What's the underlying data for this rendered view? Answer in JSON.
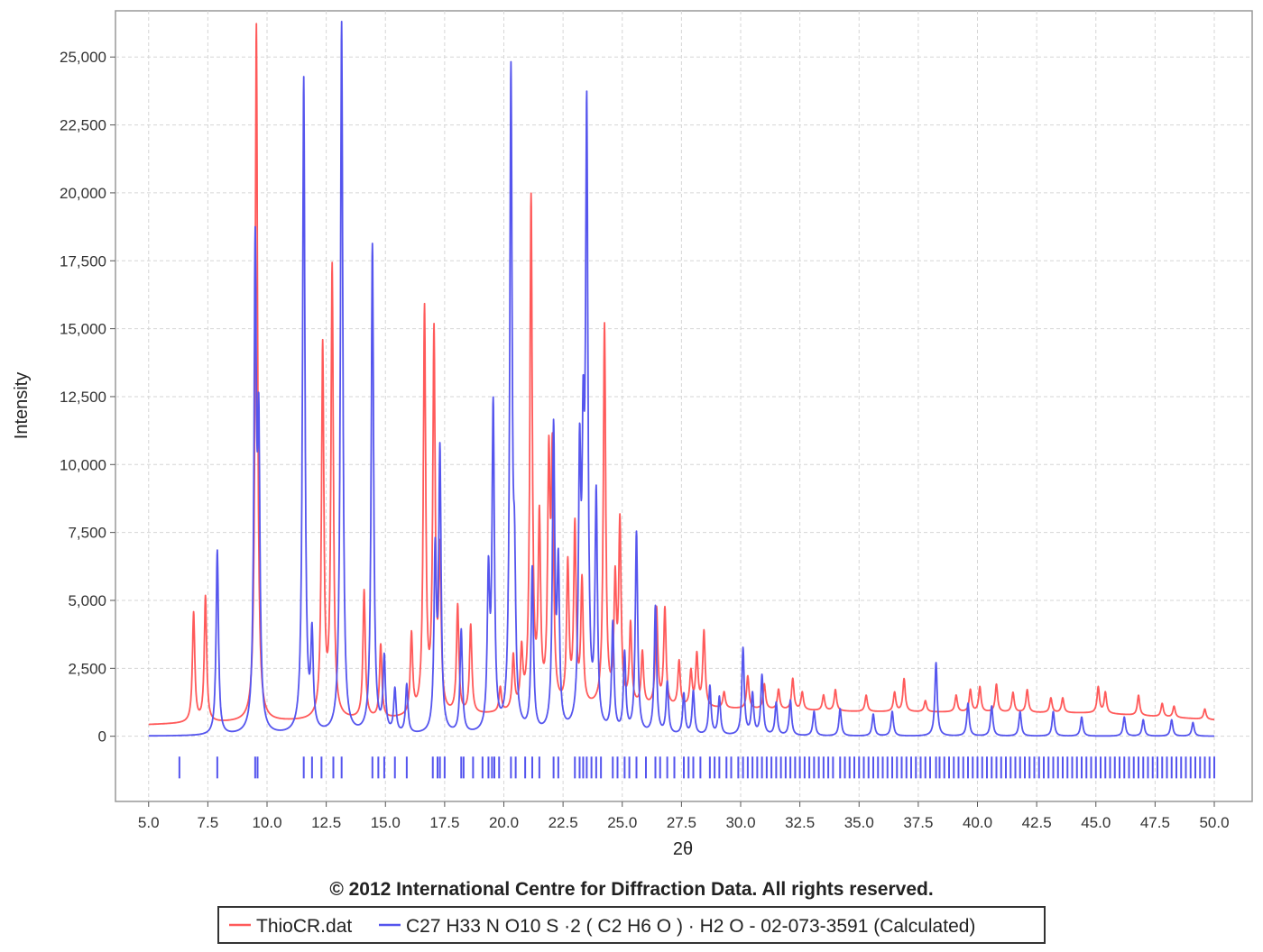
{
  "chart_data": {
    "type": "line",
    "title": "",
    "xlabel": "2θ",
    "ylabel": "Intensity",
    "xlim": [
      3.6,
      51.6
    ],
    "ylim": [
      -2400,
      26700
    ],
    "x_ticks": [
      "5.0",
      "7.5",
      "10.0",
      "12.5",
      "15.0",
      "17.5",
      "20.0",
      "22.5",
      "25.0",
      "27.5",
      "30.0",
      "32.5",
      "35.0",
      "37.5",
      "40.0",
      "42.5",
      "45.0",
      "47.5",
      "50.0"
    ],
    "y_ticks": [
      "0",
      "2,500",
      "5,000",
      "7,500",
      "10,000",
      "12,500",
      "15,000",
      "17,500",
      "20,000",
      "22,500",
      "25,000"
    ],
    "grid": true,
    "legend_position": "bottom",
    "series": [
      {
        "name": "ThioCR.dat",
        "color": "#ff5a5a",
        "baseline": [
          [
            5.0,
            420
          ],
          [
            7.0,
            470
          ],
          [
            10.0,
            520
          ],
          [
            15.0,
            600
          ],
          [
            20.0,
            800
          ],
          [
            25.0,
            1050
          ],
          [
            30.0,
            1000
          ],
          [
            35.0,
            900
          ],
          [
            40.0,
            880
          ],
          [
            45.0,
            850
          ],
          [
            50.0,
            600
          ]
        ],
        "peaks": [
          [
            6.9,
            4500
          ],
          [
            7.4,
            5100
          ],
          [
            9.55,
            26200
          ],
          [
            12.35,
            14200
          ],
          [
            12.75,
            17100
          ],
          [
            14.1,
            5300
          ],
          [
            14.8,
            3300
          ],
          [
            16.1,
            3600
          ],
          [
            16.65,
            15500
          ],
          [
            17.05,
            14500
          ],
          [
            17.3,
            6300
          ],
          [
            18.05,
            4700
          ],
          [
            18.6,
            4000
          ],
          [
            19.85,
            1700
          ],
          [
            20.4,
            2800
          ],
          [
            20.75,
            2900
          ],
          [
            21.15,
            19600
          ],
          [
            21.5,
            7600
          ],
          [
            21.9,
            9500
          ],
          [
            22.05,
            9700
          ],
          [
            22.7,
            6100
          ],
          [
            23.0,
            7500
          ],
          [
            23.3,
            5500
          ],
          [
            24.25,
            15000
          ],
          [
            24.7,
            5400
          ],
          [
            24.9,
            7600
          ],
          [
            25.35,
            4000
          ],
          [
            25.85,
            3000
          ],
          [
            26.45,
            4600
          ],
          [
            26.8,
            4600
          ],
          [
            27.4,
            2700
          ],
          [
            27.9,
            2300
          ],
          [
            28.15,
            2900
          ],
          [
            28.45,
            3800
          ],
          [
            29.3,
            1600
          ],
          [
            30.3,
            2200
          ],
          [
            31.0,
            1900
          ],
          [
            31.6,
            1700
          ],
          [
            32.2,
            2100
          ],
          [
            32.6,
            1600
          ],
          [
            33.5,
            1500
          ],
          [
            34.0,
            1700
          ],
          [
            35.3,
            1500
          ],
          [
            36.5,
            1600
          ],
          [
            36.9,
            2100
          ],
          [
            37.8,
            1300
          ],
          [
            39.1,
            1500
          ],
          [
            39.7,
            1700
          ],
          [
            40.1,
            1800
          ],
          [
            40.8,
            1900
          ],
          [
            41.5,
            1600
          ],
          [
            42.1,
            1700
          ],
          [
            43.1,
            1400
          ],
          [
            43.6,
            1400
          ],
          [
            45.1,
            1800
          ],
          [
            45.4,
            1600
          ],
          [
            46.8,
            1500
          ],
          [
            47.8,
            1200
          ],
          [
            48.3,
            1100
          ],
          [
            49.6,
            1000
          ]
        ]
      },
      {
        "name": "C27 H33 N O10 S ·2 ( C2 H6 O ) · H2 O - 02-073-3591 (Calculated)",
        "color": "#5555ee",
        "baseline": [
          [
            5.0,
            0
          ],
          [
            50.0,
            0
          ]
        ],
        "peaks": [
          [
            7.9,
            6800
          ],
          [
            9.5,
            17300
          ],
          [
            9.65,
            10200
          ],
          [
            11.55,
            24100
          ],
          [
            11.9,
            3400
          ],
          [
            13.15,
            26200
          ],
          [
            14.45,
            18000
          ],
          [
            14.95,
            2700
          ],
          [
            15.4,
            1600
          ],
          [
            15.9,
            1800
          ],
          [
            17.3,
            10200
          ],
          [
            17.1,
            6400
          ],
          [
            18.2,
            3800
          ],
          [
            19.35,
            5500
          ],
          [
            19.55,
            11800
          ],
          [
            20.3,
            24000
          ],
          [
            20.45,
            4700
          ],
          [
            21.2,
            6000
          ],
          [
            22.1,
            11000
          ],
          [
            22.3,
            5800
          ],
          [
            23.2,
            9300
          ],
          [
            23.5,
            21900
          ],
          [
            23.35,
            8800
          ],
          [
            23.9,
            8500
          ],
          [
            24.6,
            4000
          ],
          [
            25.1,
            2900
          ],
          [
            25.6,
            7400
          ],
          [
            26.4,
            4700
          ],
          [
            26.9,
            1900
          ],
          [
            27.6,
            1500
          ],
          [
            28.0,
            1600
          ],
          [
            28.7,
            1800
          ],
          [
            29.1,
            1400
          ],
          [
            30.1,
            3200
          ],
          [
            30.5,
            1500
          ],
          [
            30.9,
            2200
          ],
          [
            31.5,
            1200
          ],
          [
            32.1,
            1300
          ],
          [
            33.1,
            900
          ],
          [
            34.2,
            1000
          ],
          [
            35.6,
            800
          ],
          [
            36.4,
            900
          ],
          [
            38.25,
            2700
          ],
          [
            39.6,
            1200
          ],
          [
            40.6,
            1100
          ],
          [
            41.8,
            900
          ],
          [
            43.2,
            900
          ],
          [
            44.4,
            700
          ],
          [
            46.2,
            700
          ],
          [
            47.0,
            600
          ],
          [
            48.2,
            600
          ],
          [
            49.1,
            500
          ]
        ]
      }
    ],
    "reference_ticks": {
      "color": "#5555ee",
      "x": [
        6.3,
        7.9,
        9.5,
        9.6,
        11.55,
        11.9,
        12.3,
        12.8,
        13.15,
        14.45,
        14.7,
        14.95,
        15.4,
        15.9,
        17.0,
        17.2,
        17.3,
        17.5,
        18.2,
        18.3,
        18.7,
        19.1,
        19.35,
        19.5,
        19.6,
        19.8,
        20.3,
        20.5,
        20.9,
        21.2,
        21.5,
        22.1,
        22.3,
        23.0,
        23.2,
        23.35,
        23.5,
        23.7,
        23.9,
        24.1,
        24.6,
        24.8,
        25.1,
        25.3,
        25.6,
        26.0,
        26.4,
        26.6,
        26.9,
        27.2,
        27.6,
        27.8,
        28.0,
        28.3,
        28.7,
        28.9,
        29.1,
        29.4,
        29.6,
        29.9,
        30.1,
        30.3,
        30.5,
        30.7,
        30.9,
        31.1,
        31.3,
        31.5,
        31.7,
        31.9,
        32.1,
        32.3,
        32.5,
        32.7,
        32.9,
        33.1,
        33.3,
        33.5,
        33.7,
        33.9,
        34.2,
        34.4,
        34.6,
        34.8,
        35.0,
        35.2,
        35.4,
        35.6,
        35.8,
        36.0,
        36.2,
        36.4,
        36.6,
        36.8,
        37.0,
        37.2,
        37.4,
        37.6,
        37.8,
        38.0,
        38.25,
        38.4,
        38.6,
        38.8,
        39.0,
        39.2,
        39.4,
        39.6,
        39.8,
        40.0,
        40.2,
        40.4,
        40.6,
        40.8,
        41.0,
        41.2,
        41.4,
        41.6,
        41.8,
        42.0,
        42.2,
        42.4,
        42.6,
        42.8,
        43.0,
        43.2,
        43.4,
        43.6,
        43.8,
        44.0,
        44.2,
        44.4,
        44.6,
        44.8,
        45.0,
        45.2,
        45.4,
        45.6,
        45.8,
        46.0,
        46.2,
        46.4,
        46.6,
        46.8,
        47.0,
        47.2,
        47.4,
        47.6,
        47.8,
        48.0,
        48.2,
        48.4,
        48.6,
        48.8,
        49.0,
        49.2,
        49.4,
        49.6,
        49.8,
        50.0
      ]
    }
  },
  "copyright": "© 2012 International Centre for Diffraction Data. All rights reserved.",
  "legend": {
    "items": [
      {
        "label": "ThioCR.dat",
        "color": "#ff5a5a"
      },
      {
        "label": "C27 H33 N O10 S ·2 ( C2 H6 O ) · H2 O - 02-073-3591 (Calculated)",
        "color": "#5555ee"
      }
    ]
  }
}
